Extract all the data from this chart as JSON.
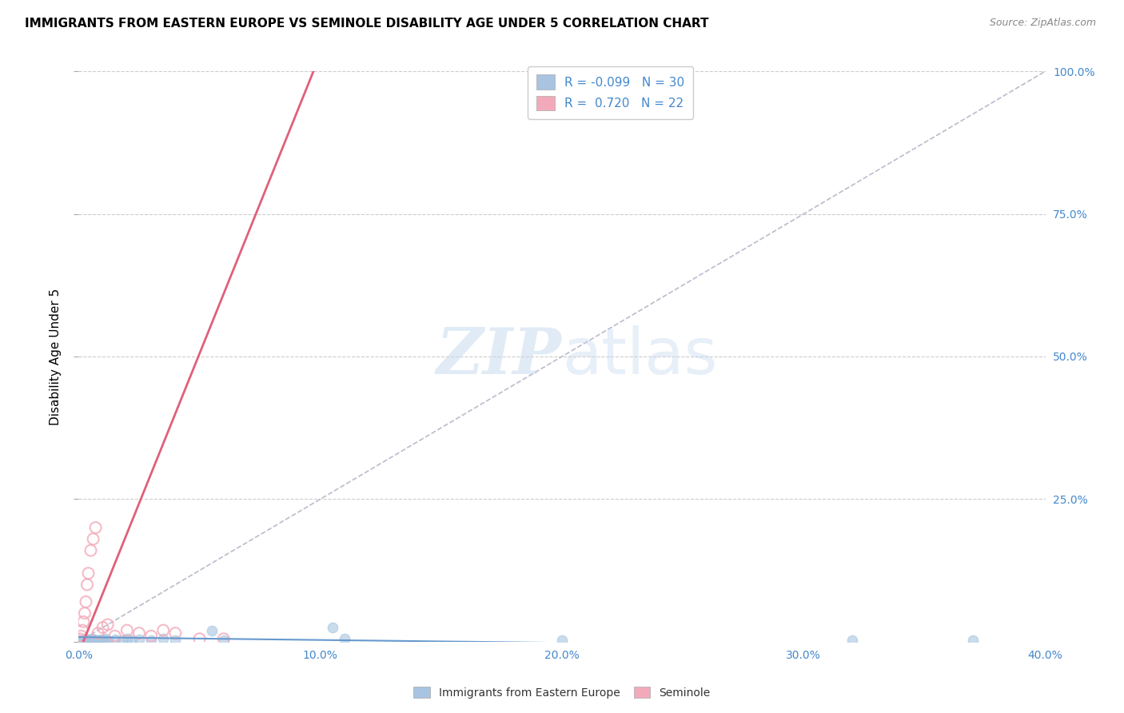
{
  "title": "IMMIGRANTS FROM EASTERN EUROPE VS SEMINOLE DISABILITY AGE UNDER 5 CORRELATION CHART",
  "source": "Source: ZipAtlas.com",
  "ylabel": "Disability Age Under 5",
  "xlim": [
    0.0,
    40.0
  ],
  "ylim": [
    0.0,
    100.0
  ],
  "xticks": [
    0.0,
    10.0,
    20.0,
    30.0,
    40.0
  ],
  "yticks": [
    0.0,
    25.0,
    50.0,
    75.0,
    100.0
  ],
  "legend_labels": [
    "Immigrants from Eastern Europe",
    "Seminole"
  ],
  "blue_color": "#a8c4e0",
  "pink_color": "#f2aaba",
  "blue_R": -0.099,
  "blue_N": 30,
  "pink_R": 0.72,
  "pink_N": 22,
  "blue_scatter_x": [
    0.1,
    0.2,
    0.3,
    0.35,
    0.4,
    0.5,
    0.55,
    0.6,
    0.65,
    0.7,
    0.8,
    0.9,
    1.0,
    1.1,
    1.2,
    1.5,
    1.8,
    2.0,
    2.2,
    2.5,
    3.0,
    3.5,
    4.0,
    5.5,
    6.0,
    10.5,
    11.0,
    20.0,
    32.0,
    37.0
  ],
  "blue_scatter_y": [
    0.3,
    0.2,
    0.5,
    0.3,
    0.4,
    0.2,
    0.5,
    0.3,
    0.4,
    0.2,
    0.3,
    0.4,
    0.3,
    0.5,
    0.2,
    0.4,
    0.3,
    0.5,
    0.3,
    0.4,
    0.2,
    0.5,
    0.3,
    2.0,
    0.3,
    2.5,
    0.5,
    0.3,
    0.2,
    0.3
  ],
  "pink_scatter_x": [
    0.05,
    0.1,
    0.15,
    0.2,
    0.25,
    0.3,
    0.35,
    0.4,
    0.5,
    0.6,
    0.7,
    0.8,
    1.0,
    1.2,
    1.5,
    2.0,
    2.5,
    3.0,
    3.5,
    4.0,
    5.0,
    6.0
  ],
  "pink_scatter_y": [
    0.5,
    1.0,
    2.0,
    3.5,
    5.0,
    7.0,
    10.0,
    12.0,
    16.0,
    18.0,
    20.0,
    1.5,
    2.5,
    3.0,
    1.0,
    2.0,
    1.5,
    1.0,
    2.0,
    1.5,
    0.5,
    0.5
  ],
  "grid_color": "#cccccc",
  "ref_line_color": "#bbbbcc",
  "blue_line_color": "#6699cc",
  "pink_line_color": "#e0607a",
  "axis_label_color": "#4488cc",
  "watermark_color": "#d8e8f5",
  "zip_color": "#c5d8ee",
  "atlas_color": "#c5d8ee"
}
